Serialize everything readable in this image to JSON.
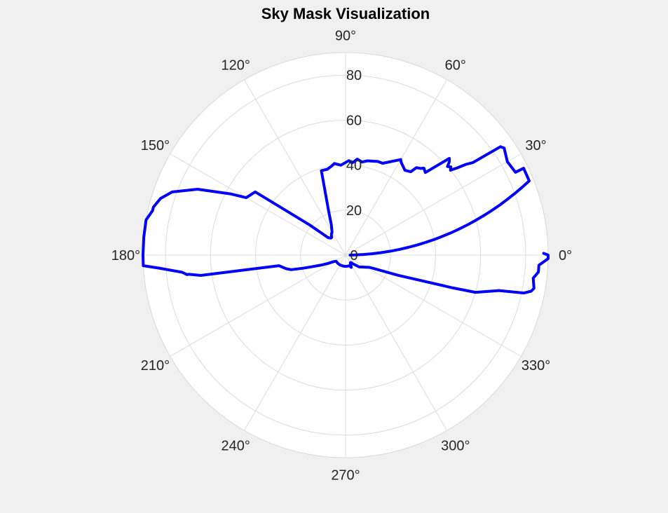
{
  "chart_data": {
    "type": "polar-line",
    "title": "Sky Mask Visualization",
    "theta_unit": "degrees",
    "theta_ticks": [
      0,
      30,
      60,
      90,
      120,
      150,
      180,
      210,
      240,
      270,
      300,
      330
    ],
    "theta_tick_labels": [
      "0°",
      "30°",
      "60°",
      "90°",
      "120°",
      "150°",
      "180°",
      "210°",
      "240°",
      "270°",
      "300°",
      "330°"
    ],
    "r_ticks": [
      0,
      20,
      40,
      60,
      80
    ],
    "r_tick_labels": [
      "0",
      "20",
      "40",
      "60",
      "80"
    ],
    "rlim": [
      0,
      90
    ],
    "grid": true,
    "series": [
      {
        "color": "#0000ff",
        "points": [
          [
            0,
            2
          ],
          [
            1,
            4
          ],
          [
            2,
            8
          ],
          [
            3,
            12
          ],
          [
            4,
            16
          ],
          [
            5,
            20
          ],
          [
            6,
            24
          ],
          [
            7,
            28
          ],
          [
            8,
            32
          ],
          [
            9,
            36
          ],
          [
            10,
            40
          ],
          [
            11,
            44
          ],
          [
            12,
            48
          ],
          [
            13,
            52
          ],
          [
            14,
            56
          ],
          [
            15,
            60
          ],
          [
            16,
            64
          ],
          [
            17,
            68
          ],
          [
            18,
            72
          ],
          [
            19,
            76
          ],
          [
            20,
            80
          ],
          [
            21,
            84
          ],
          [
            22,
            88
          ],
          [
            26,
            88
          ],
          [
            26,
            84
          ],
          [
            30,
            83
          ],
          [
            34,
            85
          ],
          [
            35,
            84
          ],
          [
            36,
            70
          ],
          [
            37,
            67
          ],
          [
            38,
            63
          ],
          [
            39,
            60
          ],
          [
            40,
            61
          ],
          [
            41,
            60
          ],
          [
            42,
            62
          ],
          [
            43,
            63
          ],
          [
            46,
            51
          ],
          [
            48,
            52
          ],
          [
            49,
            51
          ],
          [
            51,
            50
          ],
          [
            52,
            47
          ],
          [
            55,
            46
          ],
          [
            59,
            48
          ],
          [
            60,
            49
          ],
          [
            68,
            44
          ],
          [
            71,
            44
          ],
          [
            77,
            43
          ],
          [
            80,
            42
          ],
          [
            83,
            43
          ],
          [
            86,
            41
          ],
          [
            88,
            42
          ],
          [
            93,
            40
          ],
          [
            97,
            41
          ],
          [
            99,
            40
          ],
          [
            102,
            39
          ],
          [
            106,
            39
          ],
          [
            111,
            21
          ],
          [
            115,
            15
          ],
          [
            120,
            12
          ],
          [
            125,
            11
          ],
          [
            128,
            10
          ],
          [
            131,
            10
          ],
          [
            135,
            11
          ],
          [
            140,
            21
          ],
          [
            145,
            49
          ],
          [
            150,
            51
          ],
          [
            152,
            58
          ],
          [
            156,
            72
          ],
          [
            160,
            82
          ],
          [
            163,
            86
          ],
          [
            166,
            88
          ],
          [
            167,
            88
          ],
          [
            170,
            90
          ],
          [
            175,
            90
          ],
          [
            180,
            90
          ],
          [
            183,
            90
          ],
          [
            184,
            83
          ],
          [
            186,
            73
          ],
          [
            187,
            71
          ],
          [
            187,
            70
          ],
          [
            188,
            65
          ],
          [
            189,
            30
          ],
          [
            193,
            27
          ],
          [
            195,
            25
          ],
          [
            197,
            20
          ],
          [
            199,
            16
          ],
          [
            202,
            12
          ],
          [
            205,
            9
          ],
          [
            209,
            6
          ],
          [
            213,
            5
          ],
          [
            225,
            5
          ],
          [
            235,
            5
          ],
          [
            245,
            5
          ],
          [
            260,
            5
          ],
          [
            270,
            5
          ],
          [
            279,
            5
          ],
          [
            290,
            5
          ],
          [
            295,
            6
          ],
          [
            302,
            4
          ],
          [
            305,
            4
          ],
          [
            310,
            5
          ],
          [
            319,
            8
          ],
          [
            333,
            12
          ],
          [
            339,
            25
          ],
          [
            343,
            50
          ],
          [
            344,
            60
          ],
          [
            347,
            70
          ],
          [
            348,
            81
          ],
          [
            349,
            84
          ],
          [
            350,
            85
          ],
          [
            353,
            84
          ],
          [
            355,
            86
          ],
          [
            357,
            86
          ],
          [
            359,
            90
          ],
          [
            0,
            90
          ],
          [
            0.5,
            88
          ]
        ]
      }
    ]
  }
}
